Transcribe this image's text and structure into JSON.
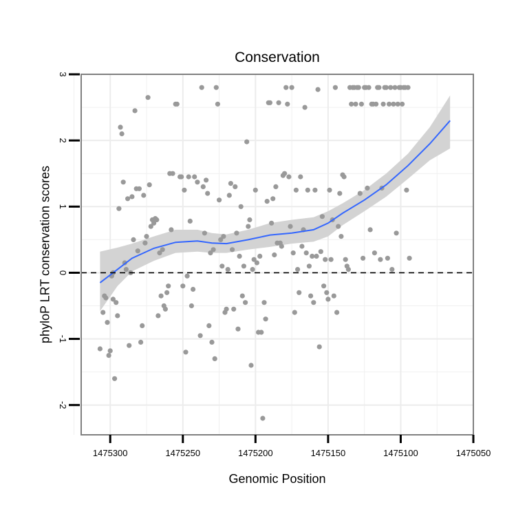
{
  "chart_data": {
    "type": "scatter",
    "title": "Conservation",
    "xlabel": "Genomic Position",
    "ylabel": "phyloP LRT conservation scores",
    "x_reversed": true,
    "xlim": [
      1475320,
      1475050
    ],
    "ylim": [
      -2.45,
      3.0
    ],
    "x_ticks": [
      1475300,
      1475250,
      1475200,
      1475150,
      1475100,
      1475050
    ],
    "x_tick_labels": [
      "1475300",
      "1475250",
      "1475200",
      "1475150",
      "1475100",
      "1475050"
    ],
    "y_ticks": [
      -2,
      -1,
      0,
      1,
      2,
      3
    ],
    "y_tick_labels": [
      "-2",
      "-1",
      "0",
      "1",
      "2",
      "3"
    ],
    "reference_line": {
      "y": 0,
      "style": "dashed"
    },
    "colors": {
      "points": "#999999",
      "smooth": "#3366ff",
      "band": "#d3d3d3",
      "frame": "#7f7f7f",
      "grid": "#f0f0f0"
    },
    "points": [
      [
        1475307,
        -1.15
      ],
      [
        1475305,
        -0.6
      ],
      [
        1475304,
        -0.35
      ],
      [
        1475303,
        -0.38
      ],
      [
        1475302,
        -0.75
      ],
      [
        1475301,
        -1.25
      ],
      [
        1475300,
        -1.18
      ],
      [
        1475299,
        -0.05
      ],
      [
        1475298,
        0.0
      ],
      [
        1475298,
        -0.4
      ],
      [
        1475297,
        -1.6
      ],
      [
        1475296,
        -0.45
      ],
      [
        1475295,
        -0.65
      ],
      [
        1475294,
        0.97
      ],
      [
        1475293,
        2.2
      ],
      [
        1475292,
        2.1
      ],
      [
        1475291,
        1.37
      ],
      [
        1475290,
        0.15
      ],
      [
        1475289,
        0.05
      ],
      [
        1475288,
        1.12
      ],
      [
        1475287,
        -1.1
      ],
      [
        1475286,
        0.0
      ],
      [
        1475285,
        1.15
      ],
      [
        1475284,
        0.5
      ],
      [
        1475283,
        2.45
      ],
      [
        1475282,
        1.27
      ],
      [
        1475281,
        0.33
      ],
      [
        1475280,
        1.27
      ],
      [
        1475279,
        -1.05
      ],
      [
        1475278,
        -0.8
      ],
      [
        1475277,
        1.17
      ],
      [
        1475276,
        0.45
      ],
      [
        1475275,
        0.55
      ],
      [
        1475274,
        2.65
      ],
      [
        1475273,
        1.33
      ],
      [
        1475272,
        0.7
      ],
      [
        1475271,
        0.8
      ],
      [
        1475270,
        0.75
      ],
      [
        1475269,
        0.82
      ],
      [
        1475268,
        0.8
      ],
      [
        1475267,
        -0.65
      ],
      [
        1475266,
        0.3
      ],
      [
        1475265,
        -0.35
      ],
      [
        1475264,
        0.35
      ],
      [
        1475263,
        -0.5
      ],
      [
        1475262,
        -0.55
      ],
      [
        1475261,
        -0.3
      ],
      [
        1475260,
        -0.2
      ],
      [
        1475259,
        1.5
      ],
      [
        1475258,
        0.65
      ],
      [
        1475257,
        1.5
      ],
      [
        1475255,
        2.55
      ],
      [
        1475254,
        2.55
      ],
      [
        1475252,
        1.45
      ],
      [
        1475251,
        1.45
      ],
      [
        1475250,
        -0.2
      ],
      [
        1475249,
        1.25
      ],
      [
        1475248,
        -1.2
      ],
      [
        1475247,
        -0.05
      ],
      [
        1475246,
        1.45
      ],
      [
        1475245,
        0.78
      ],
      [
        1475244,
        -0.5
      ],
      [
        1475243,
        -0.25
      ],
      [
        1475242,
        1.45
      ],
      [
        1475240,
        1.37
      ],
      [
        1475238,
        -0.95
      ],
      [
        1475237,
        2.8
      ],
      [
        1475236,
        1.3
      ],
      [
        1475235,
        0.6
      ],
      [
        1475234,
        1.4
      ],
      [
        1475233,
        1.2
      ],
      [
        1475232,
        -0.8
      ],
      [
        1475231,
        0.3
      ],
      [
        1475230,
        -1.05
      ],
      [
        1475229,
        0.35
      ],
      [
        1475228,
        -1.3
      ],
      [
        1475227,
        2.8
      ],
      [
        1475226,
        2.55
      ],
      [
        1475225,
        1.1
      ],
      [
        1475224,
        0.5
      ],
      [
        1475223,
        0.1
      ],
      [
        1475222,
        0.55
      ],
      [
        1475221,
        -0.6
      ],
      [
        1475220,
        -0.55
      ],
      [
        1475219,
        0.05
      ],
      [
        1475218,
        1.17
      ],
      [
        1475217,
        1.35
      ],
      [
        1475216,
        0.35
      ],
      [
        1475215,
        -0.55
      ],
      [
        1475214,
        1.3
      ],
      [
        1475213,
        0.6
      ],
      [
        1475212,
        -0.85
      ],
      [
        1475211,
        0.25
      ],
      [
        1475210,
        1.0
      ],
      [
        1475209,
        -0.35
      ],
      [
        1475208,
        0.1
      ],
      [
        1475207,
        -0.45
      ],
      [
        1475206,
        1.98
      ],
      [
        1475205,
        0.7
      ],
      [
        1475204,
        0.8
      ],
      [
        1475203,
        -1.4
      ],
      [
        1475202,
        0.05
      ],
      [
        1475201,
        0.2
      ],
      [
        1475200,
        1.25
      ],
      [
        1475199,
        0.15
      ],
      [
        1475198,
        -0.9
      ],
      [
        1475197,
        0.25
      ],
      [
        1475196,
        -0.9
      ],
      [
        1475195,
        -2.2
      ],
      [
        1475194,
        -0.45
      ],
      [
        1475193,
        -0.7
      ],
      [
        1475192,
        1.08
      ],
      [
        1475191,
        2.57
      ],
      [
        1475190,
        2.57
      ],
      [
        1475189,
        0.75
      ],
      [
        1475188,
        1.12
      ],
      [
        1475187,
        0.27
      ],
      [
        1475186,
        1.3
      ],
      [
        1475185,
        0.45
      ],
      [
        1475184,
        2.57
      ],
      [
        1475183,
        0.45
      ],
      [
        1475182,
        0.4
      ],
      [
        1475181,
        1.47
      ],
      [
        1475180,
        1.5
      ],
      [
        1475179,
        2.8
      ],
      [
        1475178,
        2.55
      ],
      [
        1475177,
        1.45
      ],
      [
        1475176,
        0.7
      ],
      [
        1475175,
        2.8
      ],
      [
        1475174,
        0.3
      ],
      [
        1475173,
        -0.6
      ],
      [
        1475172,
        1.25
      ],
      [
        1475171,
        0.05
      ],
      [
        1475170,
        -0.3
      ],
      [
        1475169,
        1.45
      ],
      [
        1475168,
        0.4
      ],
      [
        1475167,
        0.65
      ],
      [
        1475166,
        2.5
      ],
      [
        1475165,
        0.3
      ],
      [
        1475164,
        1.25
      ],
      [
        1475163,
        0.1
      ],
      [
        1475162,
        -0.35
      ],
      [
        1475161,
        0.25
      ],
      [
        1475160,
        -0.45
      ],
      [
        1475159,
        1.25
      ],
      [
        1475158,
        0.25
      ],
      [
        1475157,
        2.77
      ],
      [
        1475156,
        -1.12
      ],
      [
        1475155,
        0.32
      ],
      [
        1475154,
        0.85
      ],
      [
        1475153,
        -0.2
      ],
      [
        1475152,
        0.2
      ],
      [
        1475151,
        -0.3
      ],
      [
        1475150,
        -0.4
      ],
      [
        1475149,
        1.25
      ],
      [
        1475148,
        0.2
      ],
      [
        1475147,
        0.8
      ],
      [
        1475146,
        -0.35
      ],
      [
        1475145,
        2.8
      ],
      [
        1475144,
        -0.6
      ],
      [
        1475143,
        0.7
      ],
      [
        1475142,
        1.2
      ],
      [
        1475141,
        0.55
      ],
      [
        1475140,
        1.48
      ],
      [
        1475139,
        1.45
      ],
      [
        1475138,
        0.2
      ],
      [
        1475137,
        0.1
      ],
      [
        1475136,
        0.05
      ],
      [
        1475135,
        2.8
      ],
      [
        1475134,
        2.55
      ],
      [
        1475133,
        2.8
      ],
      [
        1475132,
        2.8
      ],
      [
        1475131,
        2.55
      ],
      [
        1475130,
        2.8
      ],
      [
        1475129,
        2.8
      ],
      [
        1475128,
        1.2
      ],
      [
        1475127,
        2.55
      ],
      [
        1475126,
        0.22
      ],
      [
        1475125,
        2.8
      ],
      [
        1475124,
        2.8
      ],
      [
        1475123,
        1.28
      ],
      [
        1475122,
        2.8
      ],
      [
        1475121,
        0.65
      ],
      [
        1475120,
        2.55
      ],
      [
        1475119,
        2.55
      ],
      [
        1475118,
        0.3
      ],
      [
        1475117,
        2.55
      ],
      [
        1475116,
        2.8
      ],
      [
        1475115,
        2.8
      ],
      [
        1475114,
        0.2
      ],
      [
        1475113,
        1.28
      ],
      [
        1475112,
        2.55
      ],
      [
        1475111,
        2.8
      ],
      [
        1475110,
        2.8
      ],
      [
        1475109,
        0.22
      ],
      [
        1475108,
        2.55
      ],
      [
        1475107,
        2.8
      ],
      [
        1475106,
        0.05
      ],
      [
        1475105,
        2.55
      ],
      [
        1475104,
        2.8
      ],
      [
        1475103,
        0.6
      ],
      [
        1475102,
        2.55
      ],
      [
        1475101,
        2.8
      ],
      [
        1475100,
        2.8
      ],
      [
        1475099,
        2.55
      ],
      [
        1475098,
        2.8
      ],
      [
        1475097,
        2.8
      ],
      [
        1475096,
        1.25
      ],
      [
        1475095,
        2.8
      ],
      [
        1475094,
        0.22
      ]
    ],
    "smooth_line": [
      [
        1475307,
        -0.15
      ],
      [
        1475295,
        0.05
      ],
      [
        1475285,
        0.22
      ],
      [
        1475270,
        0.37
      ],
      [
        1475255,
        0.46
      ],
      [
        1475240,
        0.48
      ],
      [
        1475230,
        0.45
      ],
      [
        1475220,
        0.44
      ],
      [
        1475205,
        0.5
      ],
      [
        1475190,
        0.57
      ],
      [
        1475175,
        0.6
      ],
      [
        1475160,
        0.65
      ],
      [
        1475150,
        0.75
      ],
      [
        1475140,
        0.9
      ],
      [
        1475125,
        1.1
      ],
      [
        1475110,
        1.33
      ],
      [
        1475095,
        1.62
      ],
      [
        1475080,
        1.95
      ],
      [
        1475066,
        2.3
      ]
    ],
    "confidence_band": {
      "upper": [
        [
          1475307,
          0.32
        ],
        [
          1475295,
          0.38
        ],
        [
          1475285,
          0.44
        ],
        [
          1475270,
          0.55
        ],
        [
          1475255,
          0.65
        ],
        [
          1475240,
          0.65
        ],
        [
          1475230,
          0.6
        ],
        [
          1475220,
          0.58
        ],
        [
          1475205,
          0.65
        ],
        [
          1475190,
          0.75
        ],
        [
          1475175,
          0.8
        ],
        [
          1475160,
          0.84
        ],
        [
          1475150,
          0.93
        ],
        [
          1475140,
          1.05
        ],
        [
          1475125,
          1.25
        ],
        [
          1475110,
          1.5
        ],
        [
          1475095,
          1.8
        ],
        [
          1475080,
          2.2
        ],
        [
          1475066,
          2.68
        ]
      ],
      "lower": [
        [
          1475307,
          -0.58
        ],
        [
          1475295,
          -0.2
        ],
        [
          1475285,
          0.02
        ],
        [
          1475270,
          0.18
        ],
        [
          1475255,
          0.3
        ],
        [
          1475240,
          0.32
        ],
        [
          1475230,
          0.3
        ],
        [
          1475220,
          0.3
        ],
        [
          1475205,
          0.35
        ],
        [
          1475190,
          0.39
        ],
        [
          1475175,
          0.44
        ],
        [
          1475160,
          0.47
        ],
        [
          1475150,
          0.55
        ],
        [
          1475140,
          0.72
        ],
        [
          1475125,
          0.93
        ],
        [
          1475110,
          1.15
        ],
        [
          1475095,
          1.42
        ],
        [
          1475080,
          1.7
        ],
        [
          1475066,
          1.88
        ]
      ]
    }
  }
}
